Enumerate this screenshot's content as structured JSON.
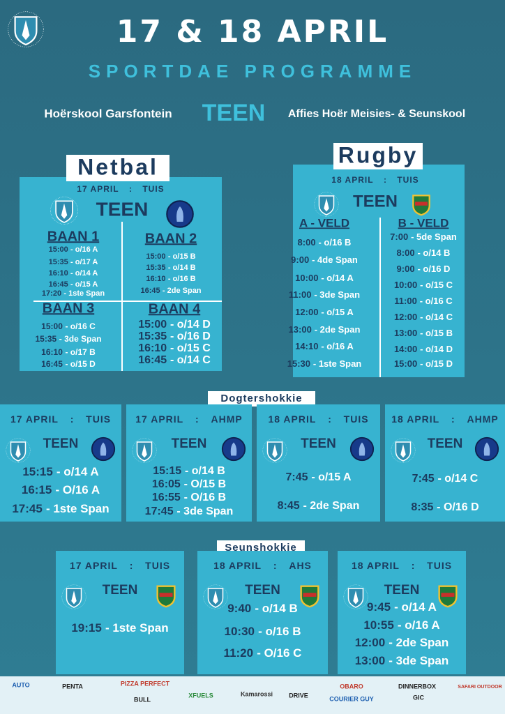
{
  "header": {
    "date": "17 & 18 APRIL",
    "subtitle": "SPORTDAE PROGRAMME",
    "home": "Hoërskool Garsfontein",
    "versus": "TEEN",
    "away": "Affies Hoër Meisies- & Seunskool"
  },
  "netbal": {
    "title": "Netbal",
    "date": "17 APRIL",
    "sep": ":",
    "venue": "TUIS",
    "teen": "TEEN",
    "courts": [
      {
        "name": "BAAN 1",
        "games": [
          [
            "15:00",
            "- o/16 A"
          ],
          [
            "15:35",
            "- o/17 A"
          ],
          [
            "16:10",
            "- o/14 A"
          ],
          [
            "16:45",
            "- o/15 A"
          ],
          [
            "17:20",
            "- 1ste Span"
          ]
        ]
      },
      {
        "name": "BAAN 2",
        "games": [
          [
            "15:00",
            "- o/15 B"
          ],
          [
            "15:35",
            "- o/14 B"
          ],
          [
            "16:10",
            "- o/16 B"
          ],
          [
            "16:45",
            "- 2de Span"
          ]
        ]
      },
      {
        "name": "BAAN 3",
        "games": [
          [
            "15:00",
            "- o/16 C"
          ],
          [
            "15:35",
            "- 3de Span"
          ],
          [
            "16:10",
            "- o/17 B"
          ],
          [
            "16:45",
            "- o/15 D"
          ]
        ]
      },
      {
        "name": "BAAN 4",
        "games": [
          [
            "15:00",
            "- o/14 D"
          ],
          [
            "15:35",
            "- o/16 D"
          ],
          [
            "16:10",
            "- o/15 C"
          ],
          [
            "16:45",
            "- o/14 C"
          ]
        ]
      }
    ]
  },
  "rugby": {
    "title": "Rugby",
    "date": "18 APRIL",
    "sep": ":",
    "venue": "TUIS",
    "teen": "TEEN",
    "fields": [
      {
        "name": "A - VELD",
        "games": [
          [
            "8:00",
            "- o/16 B"
          ],
          [
            "9:00",
            "- 4de Span"
          ],
          [
            "10:00",
            "- o/14 A"
          ],
          [
            "11:00",
            "- 3de Span"
          ],
          [
            "12:00",
            "- o/15 A"
          ],
          [
            "13:00",
            "- 2de Span"
          ],
          [
            "14:10",
            "- o/16 A"
          ],
          [
            "15:30",
            "- 1ste Span"
          ]
        ]
      },
      {
        "name": "B - VELD",
        "games": [
          [
            "7:00",
            "- 5de Span"
          ],
          [
            "8:00",
            "- o/14 B"
          ],
          [
            "9:00",
            "- o/16 D"
          ],
          [
            "10:00",
            "- o/15 C"
          ],
          [
            "11:00",
            "- o/16 C"
          ],
          [
            "12:00",
            "- o/14 C"
          ],
          [
            "13:00",
            "- o/15 B"
          ],
          [
            "14:00",
            "- o/14 D"
          ],
          [
            "15:00",
            "- o/15 D"
          ]
        ]
      }
    ]
  },
  "dogtershokkie": {
    "title": "Dogtershokkie",
    "panels": [
      {
        "date": "17 APRIL",
        "sep": ":",
        "venue": "TUIS",
        "teen": "TEEN",
        "games": [
          [
            "15:15",
            "- o/14 A"
          ],
          [
            "16:15",
            "- O/16 A"
          ],
          [
            "17:45",
            "- 1ste Span"
          ]
        ]
      },
      {
        "date": "17 APRIL",
        "sep": ":",
        "venue": "AHMP",
        "teen": "TEEN",
        "games": [
          [
            "15:15",
            "- o/14 B"
          ],
          [
            "16:05",
            "- O/15 B"
          ],
          [
            "16:55",
            "- O/16 B"
          ],
          [
            "17:45",
            "- 3de Span"
          ]
        ]
      },
      {
        "date": "18 APRIL",
        "sep": ":",
        "venue": "TUIS",
        "teen": "TEEN",
        "games": [
          [
            "7:45",
            "- o/15 A"
          ],
          [
            "8:45",
            "- 2de Span"
          ]
        ]
      },
      {
        "date": "18 APRIL",
        "sep": ":",
        "venue": "AHMP",
        "teen": "TEEN",
        "games": [
          [
            "7:45",
            "- o/14 C"
          ],
          [
            "8:35",
            "- O/16 D"
          ]
        ]
      }
    ]
  },
  "seunshokkie": {
    "title": "Seunshokkie",
    "panels": [
      {
        "date": "17 APRIL",
        "sep": ":",
        "venue": "TUIS",
        "teen": "TEEN",
        "games": [
          [
            "19:15",
            "- 1ste Span"
          ]
        ]
      },
      {
        "date": "18 APRIL",
        "sep": ":",
        "venue": "AHS",
        "teen": "TEEN",
        "games": [
          [
            "9:40",
            "- o/14 B"
          ],
          [
            "10:30",
            "- o/16 B"
          ],
          [
            "11:20",
            "- O/16 C"
          ]
        ]
      },
      {
        "date": "18 APRIL",
        "sep": ":",
        "venue": "TUIS",
        "teen": "TEEN",
        "games": [
          [
            "9:45",
            "- o/14 A"
          ],
          [
            "10:55",
            "- o/16 A"
          ],
          [
            "12:00",
            "- 2de Span"
          ],
          [
            "13:00",
            "- 3de Span"
          ]
        ]
      }
    ]
  },
  "sponsors": [
    "AUTO",
    "PENTA",
    "PIZZA PERFECT",
    "BULL",
    "XFUELS",
    "Kamarossi",
    "DRIVE",
    "OBARO",
    "COURIER GUY",
    "DINNERBOX",
    "GIC",
    "SAFARI OUTDOOR"
  ]
}
